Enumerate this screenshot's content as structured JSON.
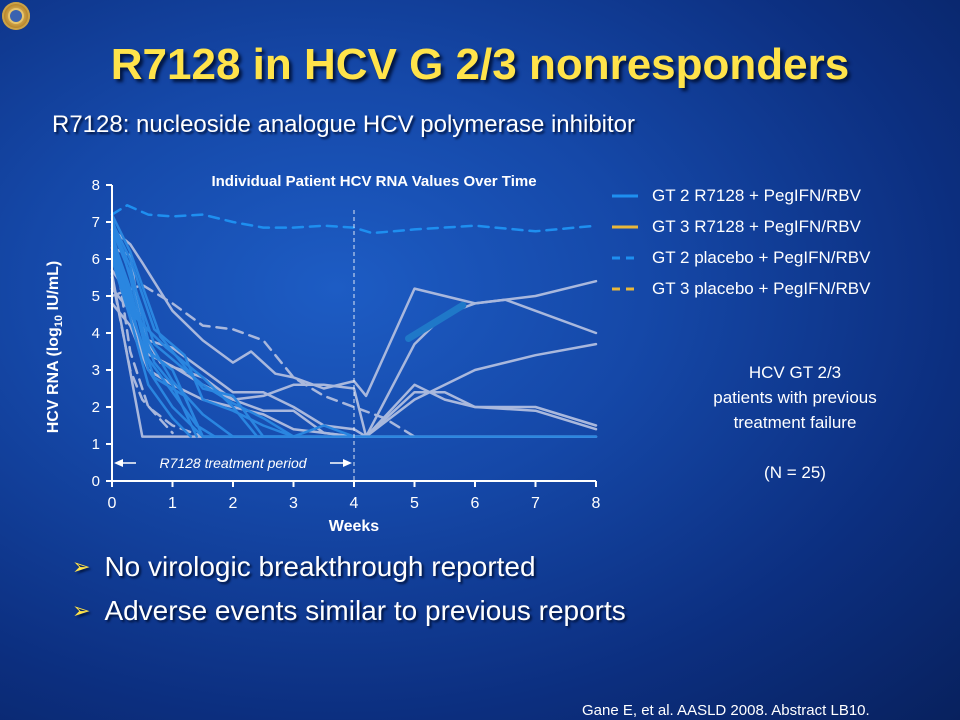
{
  "slide": {
    "title": "R7128 in HCV G 2/3 nonresponders",
    "subtitle": "R7128: nucleoside analogue HCV polymerase inhibitor",
    "bullets": [
      "No virologic breakthrough reported",
      "Adverse events similar to previous reports"
    ],
    "citation": "Gane E, et al. AASLD 2008. Abstract LB10.",
    "note_lines": [
      "HCV GT 2/3",
      "patients with previous",
      "treatment failure",
      "",
      "(N = 25)"
    ],
    "bullet_icon": "triangle-bullet-icon",
    "logo_icon": "seal-logo-icon"
  },
  "chart_data": {
    "type": "line",
    "title": "Individual Patient HCV RNA Values Over Time",
    "xlabel": "Weeks",
    "ylabel_parts": [
      "HCV RNA (log",
      "10",
      " IU/mL)"
    ],
    "xlim": [
      0,
      8
    ],
    "ylim": [
      0,
      8
    ],
    "xticks": [
      0,
      1,
      2,
      3,
      4,
      5,
      6,
      7,
      8
    ],
    "yticks": [
      0,
      1,
      2,
      3,
      4,
      5,
      6,
      7,
      8
    ],
    "annotation": "R7128 treatment period",
    "annotation_range": [
      0,
      4
    ],
    "reference_line_x": 4,
    "legend": [
      {
        "label": "GT 2 R7128 + PegIFN/RBV",
        "color": "#1e8ff0",
        "dash": false
      },
      {
        "label": "GT 3 R7128 + PegIFN/RBV",
        "color": "#e8b73a",
        "dash": false
      },
      {
        "label": "GT 2 placebo + PegIFN/RBV",
        "color": "#1e8ff0",
        "dash": true
      },
      {
        "label": "GT 3 placebo + PegIFN/RBV",
        "color": "#e8b73a",
        "dash": true
      }
    ],
    "series": [
      {
        "color": "#a9b8dd",
        "dash": false,
        "points": [
          [
            0,
            6.3
          ],
          [
            0.3,
            6.1
          ],
          [
            0.5,
            4.0
          ],
          [
            0.8,
            3.2
          ],
          [
            1.5,
            2.8
          ],
          [
            2,
            2.2
          ],
          [
            2.5,
            2.3
          ],
          [
            3,
            2.6
          ],
          [
            3.5,
            2.6
          ],
          [
            4,
            2.5
          ],
          [
            4.2,
            1.2
          ],
          [
            5,
            3.7
          ],
          [
            5.5,
            4.5
          ],
          [
            6,
            4.8
          ],
          [
            6.5,
            4.9
          ],
          [
            7,
            4.6
          ],
          [
            8,
            4.0
          ]
        ]
      },
      {
        "color": "#a9b8dd",
        "dash": false,
        "points": [
          [
            0,
            6.8
          ],
          [
            0.3,
            6.4
          ],
          [
            0.5,
            5.9
          ],
          [
            1,
            4.6
          ],
          [
            1.5,
            3.8
          ],
          [
            2,
            3.2
          ],
          [
            2.3,
            3.5
          ],
          [
            2.7,
            2.9
          ],
          [
            3,
            2.8
          ],
          [
            3.5,
            2.5
          ],
          [
            4,
            2.7
          ],
          [
            4.2,
            2.3
          ],
          [
            5,
            5.2
          ],
          [
            6,
            4.8
          ],
          [
            7,
            5.0
          ],
          [
            8,
            5.4
          ]
        ]
      },
      {
        "color": "#a9b8dd",
        "dash": false,
        "points": [
          [
            0,
            5.7
          ],
          [
            0.3,
            5.0
          ],
          [
            0.6,
            3.8
          ],
          [
            1,
            3.6
          ],
          [
            1.5,
            3.0
          ],
          [
            2,
            2.4
          ],
          [
            2.5,
            2.4
          ],
          [
            3,
            2.0
          ],
          [
            3.5,
            1.5
          ],
          [
            4,
            1.4
          ],
          [
            4.2,
            1.2
          ],
          [
            5,
            2.2
          ],
          [
            6,
            3.0
          ],
          [
            7,
            3.4
          ],
          [
            8,
            3.7
          ]
        ]
      },
      {
        "color": "#a9b8dd",
        "dash": false,
        "points": [
          [
            0,
            5.2
          ],
          [
            0.3,
            4.6
          ],
          [
            0.5,
            3.5
          ],
          [
            1,
            3.1
          ],
          [
            1.5,
            2.6
          ],
          [
            2,
            2.2
          ],
          [
            2.5,
            1.9
          ],
          [
            3,
            1.9
          ],
          [
            3.5,
            1.3
          ],
          [
            4,
            1.2
          ],
          [
            4.2,
            1.2
          ],
          [
            5,
            2.4
          ],
          [
            5.5,
            2.4
          ],
          [
            6,
            2.0
          ],
          [
            7,
            2.0
          ],
          [
            8,
            1.5
          ]
        ]
      },
      {
        "color": "#a9b8dd",
        "dash": false,
        "points": [
          [
            0,
            4.8
          ],
          [
            0.3,
            4.2
          ],
          [
            0.6,
            3.0
          ],
          [
            1,
            2.6
          ],
          [
            1.5,
            2.2
          ],
          [
            2,
            2.0
          ],
          [
            2.5,
            1.8
          ],
          [
            3,
            1.4
          ],
          [
            3.5,
            1.3
          ],
          [
            4,
            1.2
          ],
          [
            4.2,
            1.2
          ],
          [
            5,
            2.6
          ],
          [
            5.5,
            2.2
          ],
          [
            6,
            2.0
          ],
          [
            7,
            1.9
          ],
          [
            8,
            1.4
          ]
        ]
      },
      {
        "color": "#a9b8dd",
        "dash": true,
        "points": [
          [
            0,
            5.0
          ],
          [
            0.5,
            5.3
          ],
          [
            1,
            4.8
          ],
          [
            1.5,
            4.2
          ],
          [
            2,
            4.1
          ],
          [
            2.5,
            3.8
          ],
          [
            3,
            2.8
          ],
          [
            3.5,
            2.3
          ],
          [
            4,
            2.0
          ],
          [
            4.5,
            1.7
          ],
          [
            5,
            1.2
          ]
        ]
      },
      {
        "color": "#a9b8dd",
        "dash": true,
        "points": [
          [
            0,
            6.8
          ],
          [
            0.3,
            3.5
          ],
          [
            0.6,
            2.0
          ],
          [
            1,
            1.5
          ],
          [
            1.5,
            1.2
          ]
        ]
      },
      {
        "color": "#a9b8dd",
        "dash": true,
        "points": [
          [
            0,
            5.5
          ],
          [
            0.3,
            3.0
          ],
          [
            0.5,
            2.2
          ],
          [
            1,
            1.3
          ]
        ]
      },
      {
        "color": "#a9b8dd",
        "dash": false,
        "points": [
          [
            0,
            5.6
          ],
          [
            0.5,
            1.2
          ],
          [
            8,
            1.2
          ]
        ]
      },
      {
        "color": "#2a86e0",
        "dash": false,
        "points": [
          [
            0,
            7.2
          ],
          [
            0.3,
            6.2
          ],
          [
            0.8,
            3.9
          ],
          [
            1.5,
            2.5
          ],
          [
            2,
            2.3
          ],
          [
            2.5,
            1.2
          ],
          [
            3,
            1.2
          ]
        ]
      },
      {
        "color": "#2a86e0",
        "dash": false,
        "points": [
          [
            0,
            7.1
          ],
          [
            0.3,
            5.5
          ],
          [
            0.6,
            3.5
          ],
          [
            1,
            3.0
          ],
          [
            1.5,
            1.2
          ]
        ]
      },
      {
        "color": "#2a86e0",
        "dash": false,
        "points": [
          [
            0,
            6.9
          ],
          [
            0.3,
            5.8
          ],
          [
            0.6,
            3.8
          ],
          [
            1,
            2.7
          ],
          [
            1.5,
            1.8
          ],
          [
            2,
            1.2
          ]
        ]
      },
      {
        "color": "#2a86e0",
        "dash": false,
        "points": [
          [
            0,
            6.6
          ],
          [
            0.3,
            5.2
          ],
          [
            0.6,
            3.3
          ],
          [
            1,
            2.4
          ],
          [
            1.4,
            1.5
          ],
          [
            1.7,
            1.2
          ]
        ]
      },
      {
        "color": "#2a86e0",
        "dash": false,
        "points": [
          [
            0,
            6.4
          ],
          [
            0.3,
            4.8
          ],
          [
            0.6,
            3.0
          ],
          [
            1,
            2.0
          ],
          [
            1.5,
            1.2
          ]
        ]
      },
      {
        "color": "#2a86e0",
        "dash": false,
        "points": [
          [
            0,
            7.0
          ],
          [
            0.3,
            6.0
          ],
          [
            0.7,
            4.1
          ],
          [
            1.2,
            3.4
          ],
          [
            1.5,
            2.2
          ],
          [
            2,
            1.9
          ],
          [
            2.5,
            1.5
          ],
          [
            3,
            1.2
          ]
        ]
      },
      {
        "color": "#2a86e0",
        "dash": false,
        "points": [
          [
            0,
            6.2
          ],
          [
            0.3,
            4.6
          ],
          [
            0.7,
            2.8
          ],
          [
            1.2,
            2.3
          ],
          [
            1.5,
            1.2
          ]
        ]
      },
      {
        "color": "#2a86e0",
        "dash": false,
        "points": [
          [
            0,
            6.8
          ],
          [
            0.3,
            5.6
          ],
          [
            0.7,
            3.7
          ],
          [
            1.5,
            2.6
          ],
          [
            2,
            2.1
          ],
          [
            2.5,
            1.7
          ],
          [
            3,
            1.2
          ],
          [
            3.5,
            1.5
          ],
          [
            4,
            1.2
          ]
        ]
      },
      {
        "color": "#2a86e0",
        "dash": false,
        "points": [
          [
            0,
            6.5
          ],
          [
            0.3,
            5.0
          ],
          [
            0.7,
            3.2
          ],
          [
            1,
            2.6
          ],
          [
            1.4,
            1.2
          ]
        ]
      },
      {
        "color": "#2a86e0",
        "dash": false,
        "points": [
          [
            0,
            6.0
          ],
          [
            0.3,
            4.4
          ],
          [
            0.6,
            2.6
          ],
          [
            1,
            1.7
          ],
          [
            1.3,
            1.2
          ]
        ]
      },
      {
        "color": "#2a86e0",
        "dash": false,
        "points": [
          [
            0,
            6.7
          ],
          [
            0.4,
            4.4
          ],
          [
            0.9,
            3.6
          ],
          [
            1.5,
            2.8
          ],
          [
            2,
            2.0
          ],
          [
            2.4,
            1.2
          ]
        ]
      },
      {
        "color": "#2a86e0",
        "dash": false,
        "points": [
          [
            1.5,
            1.2
          ],
          [
            8,
            1.2
          ]
        ]
      },
      {
        "color": "#1e8ff0",
        "dash": true,
        "points": [
          [
            0,
            7.2
          ],
          [
            0.25,
            7.45
          ],
          [
            0.6,
            7.2
          ],
          [
            1,
            7.15
          ],
          [
            1.5,
            7.2
          ],
          [
            2,
            7.0
          ],
          [
            2.5,
            6.85
          ],
          [
            3,
            6.85
          ],
          [
            3.5,
            6.9
          ],
          [
            4,
            6.85
          ],
          [
            4.3,
            6.7
          ],
          [
            5,
            6.8
          ],
          [
            6,
            6.9
          ],
          [
            7,
            6.75
          ],
          [
            8,
            6.9
          ]
        ]
      },
      {
        "color": "#1f78c8",
        "dash": false,
        "points": [
          [
            4.9,
            3.85
          ],
          [
            5.8,
            4.75
          ]
        ]
      }
    ]
  }
}
